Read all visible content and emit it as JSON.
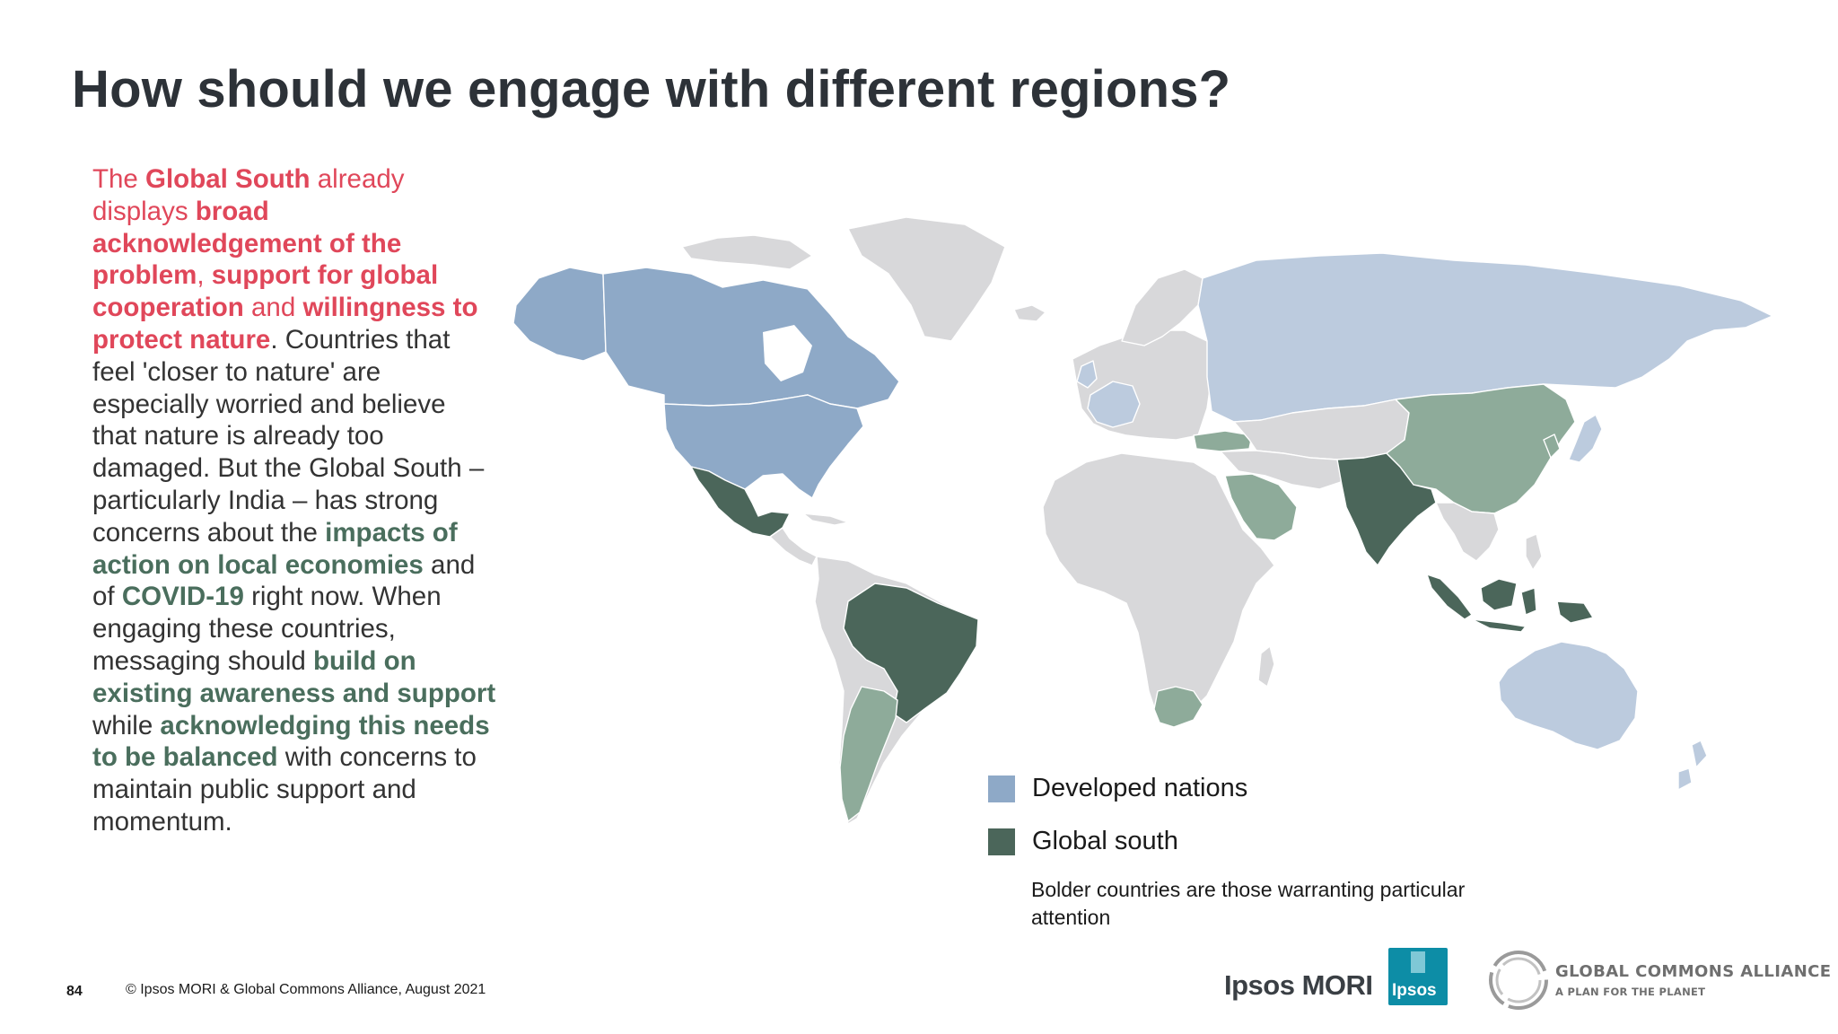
{
  "slide": {
    "title": "How should we engage with different regions?",
    "page_number": "84",
    "copyright": "© Ipsos MORI & Global Commons Alliance, August 2021"
  },
  "body": {
    "t1": "The ",
    "t2": "Global South",
    "t3": " already displays ",
    "t4": "broad acknowledgement of the problem",
    "t5": ", ",
    "t6": "support for global cooperation",
    "t7": " and ",
    "t8": "willingness to protect nature",
    "t9": ". Countries that feel 'closer to nature' are especially worried and believe that nature is already too damaged. But the Global South – particularly India – has strong concerns about the ",
    "t10": "impacts of action on local economies",
    "t11": " and of ",
    "t12": "COVID-19",
    "t13": " right now. When engaging these countries, messaging should ",
    "t14": "build on existing awareness and support",
    "t15": " while ",
    "t16": "acknowledging this needs to be balanced",
    "t17": " with concerns to maintain public support and momentum."
  },
  "legend": {
    "items": [
      {
        "label": "Developed nations",
        "color": "#8ea9c7"
      },
      {
        "label": "Global south",
        "color": "#4b665a"
      }
    ],
    "note": "Bolder countries are those warranting particular attention"
  },
  "map": {
    "developed_nations_bold": [
      "United States",
      "Canada",
      "Alaska"
    ],
    "developed_nations_light": [
      "Russia",
      "Europe (west)",
      "Japan",
      "Australia",
      "New Zealand"
    ],
    "global_south_bold": [
      "Mexico",
      "Brazil",
      "India",
      "Indonesia"
    ],
    "global_south_light": [
      "China",
      "Saudi Arabia",
      "Turkey",
      "Argentina",
      "South Africa",
      "South Korea"
    ],
    "colors": {
      "land": "#d8d8da",
      "developed_bold": "#8ea9c7",
      "developed_light": "#bccbde",
      "global_south_bold": "#4b665a",
      "global_south_light": "#8eab9a"
    }
  },
  "logos": {
    "ipsos_wordmark": "Ipsos MORI",
    "ipsos_box": "Ipsos",
    "gca_name": "GLOBAL COMMONS ALLIANCE",
    "gca_tagline": "A PLAN FOR THE PLANET"
  }
}
